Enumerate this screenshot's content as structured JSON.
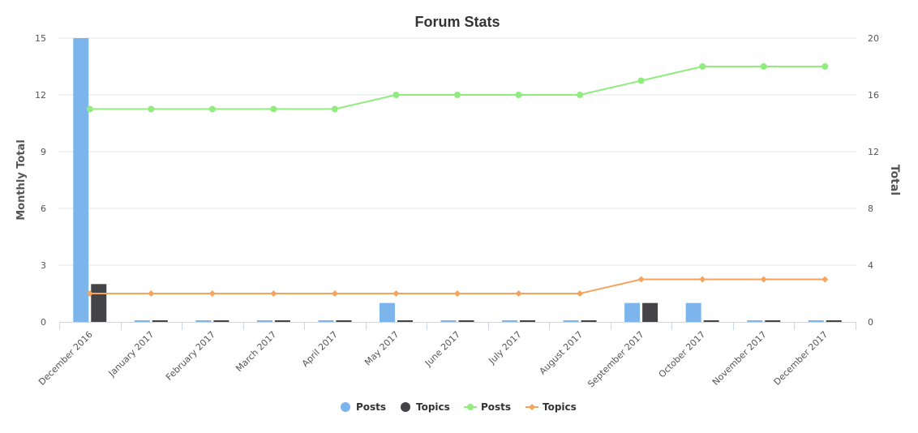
{
  "chart_data": {
    "type": "bar",
    "title": "Forum Stats",
    "categories": [
      "December 2016",
      "January 2017",
      "February 2017",
      "March 2017",
      "April 2017",
      "May 2017",
      "June 2017",
      "July 2017",
      "August 2017",
      "September 2017",
      "October 2017",
      "November 2017",
      "December 2017"
    ],
    "left_axis": {
      "title": "Monthly Total",
      "min": 0,
      "max": 15,
      "ticks": [
        0,
        3,
        6,
        9,
        12,
        15
      ]
    },
    "right_axis": {
      "title": "Total",
      "min": 0,
      "max": 20,
      "ticks": [
        0,
        4,
        8,
        12,
        16,
        20
      ]
    },
    "grid": true,
    "legend_position": "bottom",
    "series": [
      {
        "name": "Posts",
        "type": "bar",
        "axis": "left",
        "color": "#7cb5ec",
        "values": [
          15,
          0,
          0,
          0,
          0,
          1,
          0,
          0,
          0,
          1,
          1,
          0,
          0
        ]
      },
      {
        "name": "Topics",
        "type": "bar",
        "axis": "left",
        "color": "#434348",
        "values": [
          2,
          0,
          0,
          0,
          0,
          0,
          0,
          0,
          0,
          1,
          0,
          0,
          0
        ]
      },
      {
        "name": "Posts",
        "type": "line",
        "axis": "right",
        "color": "#90ed7d",
        "marker": "circle",
        "values": [
          15,
          15,
          15,
          15,
          15,
          16,
          16,
          16,
          16,
          17,
          18,
          18,
          18
        ]
      },
      {
        "name": "Topics",
        "type": "line",
        "axis": "right",
        "color": "#f7a35c",
        "marker": "diamond",
        "values": [
          2,
          2,
          2,
          2,
          2,
          2,
          2,
          2,
          2,
          3,
          3,
          3,
          3
        ]
      }
    ]
  }
}
